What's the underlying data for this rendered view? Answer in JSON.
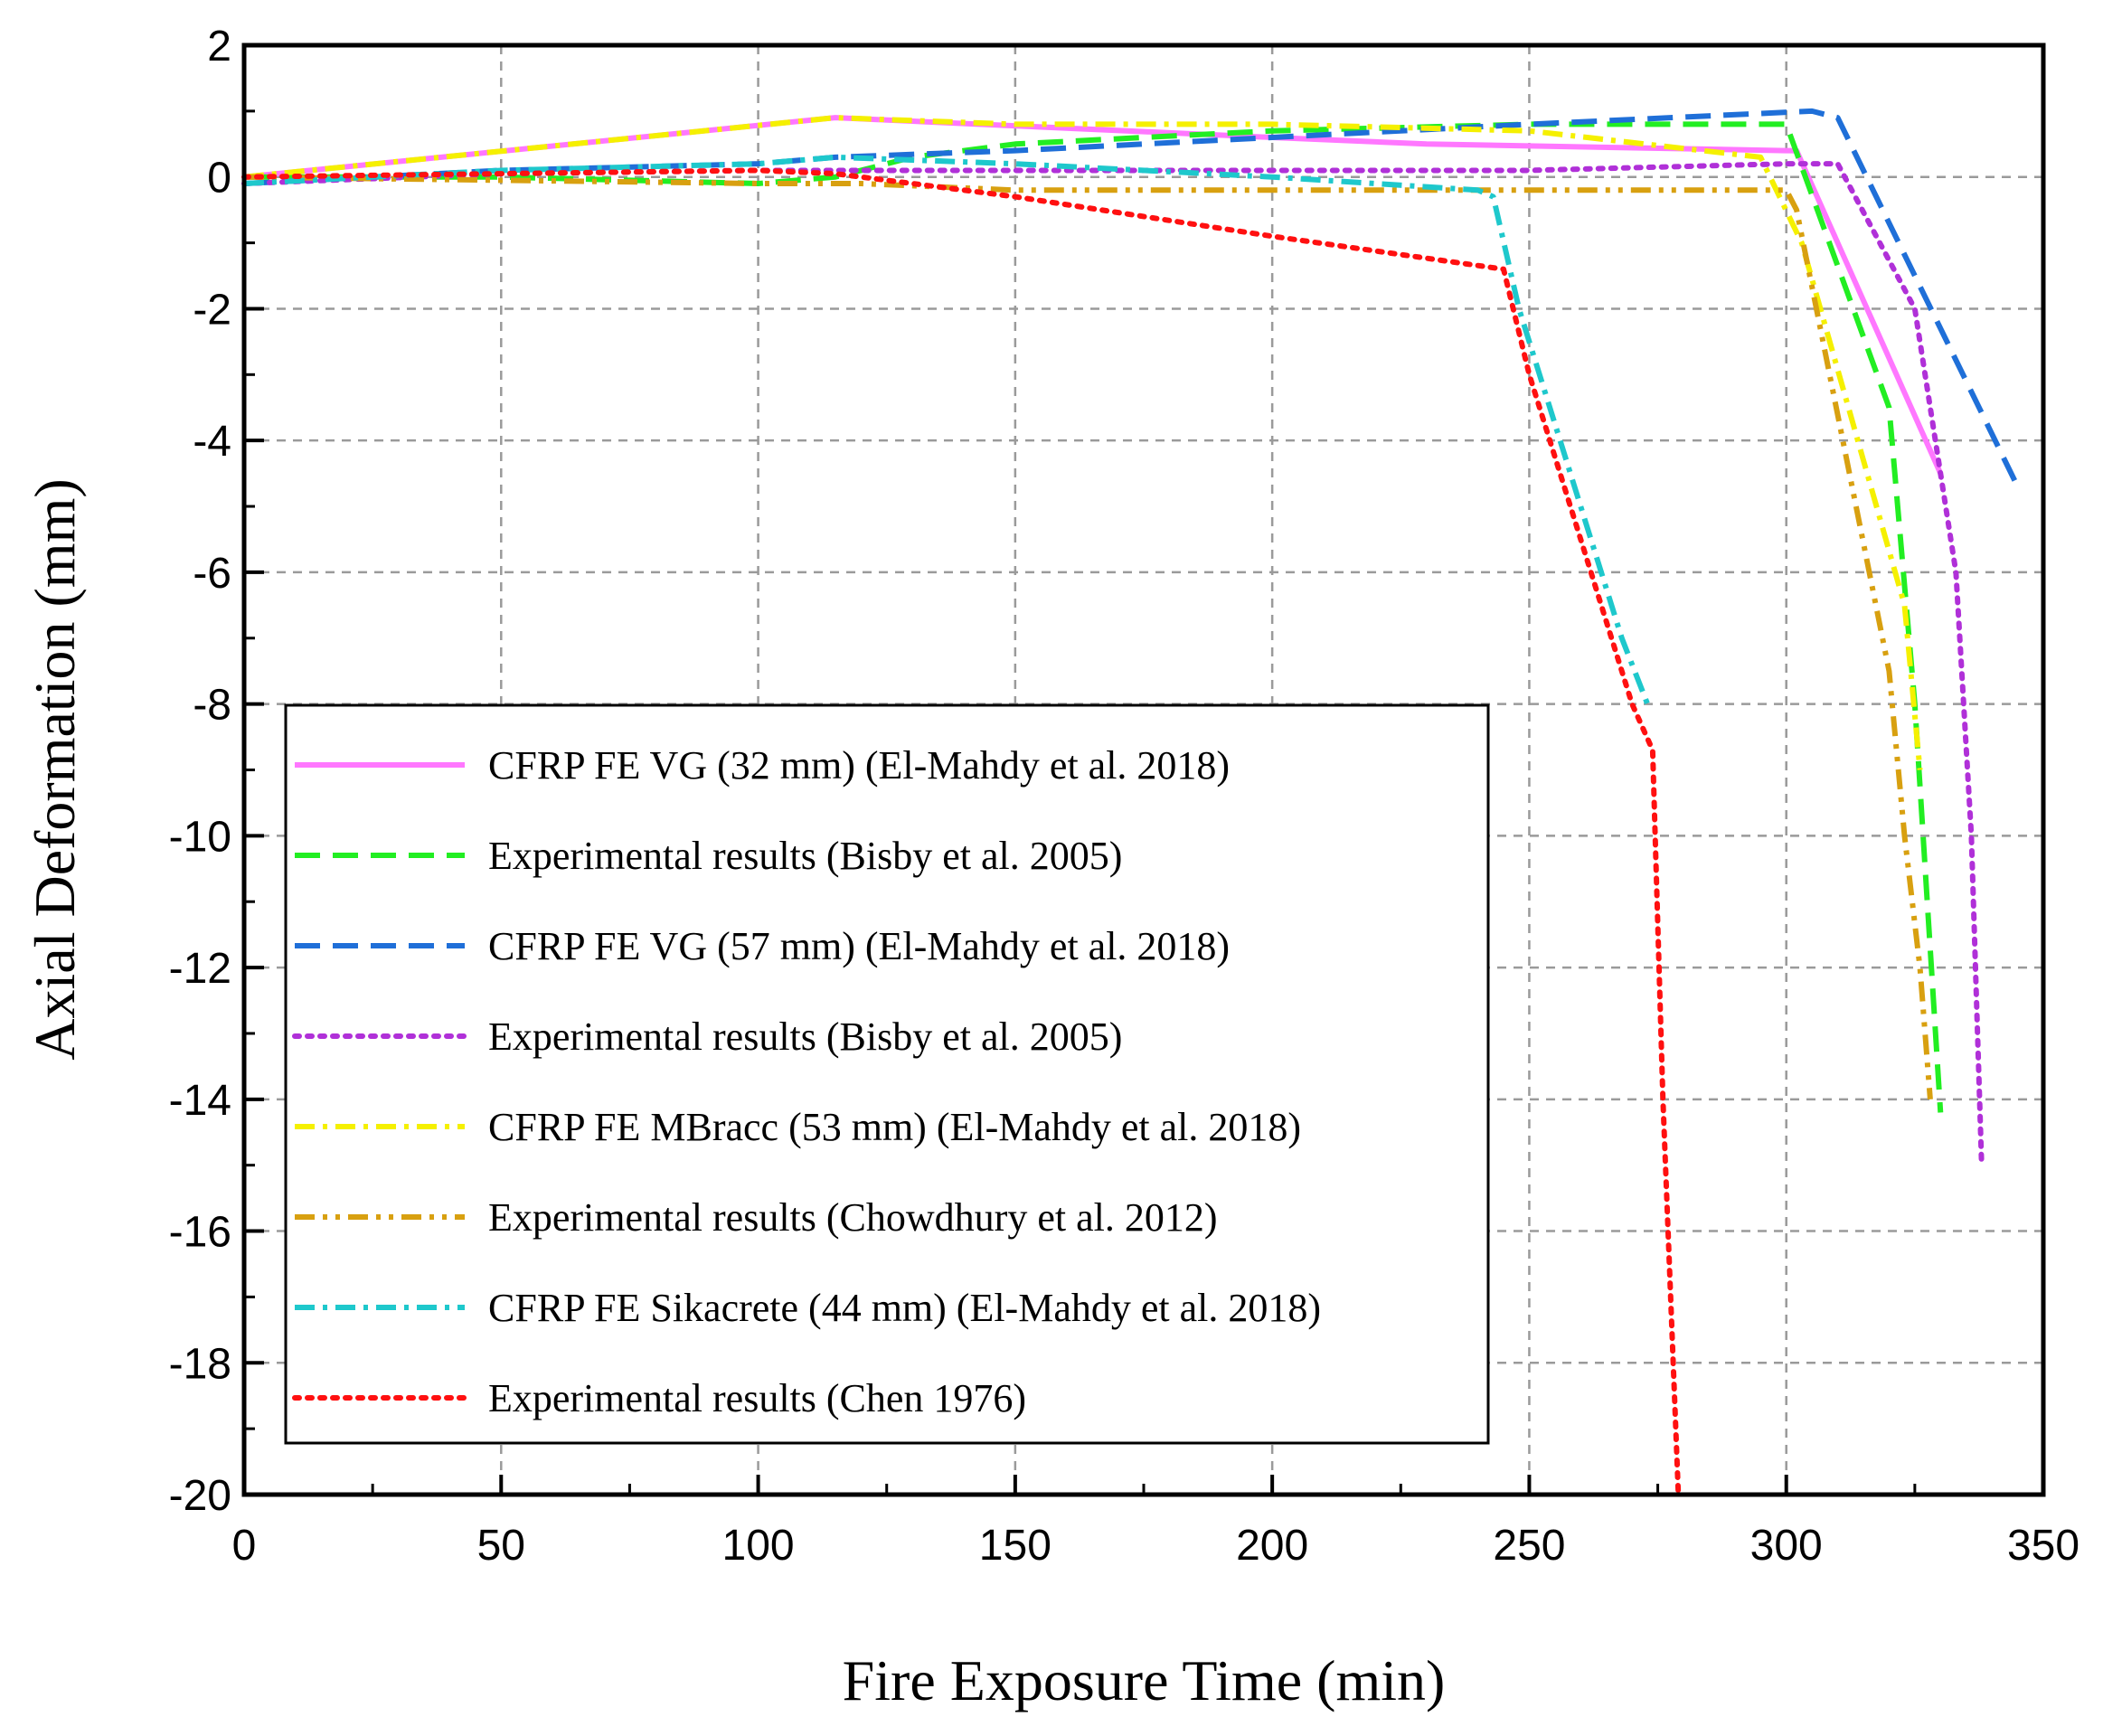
{
  "chart_data": {
    "type": "line",
    "title": "",
    "xlabel": "Fire Exposure Time (min)",
    "ylabel": "Axial Deformation (mm)",
    "xlim": [
      0,
      350
    ],
    "ylim": [
      -20,
      2
    ],
    "xticks": [
      0,
      50,
      100,
      150,
      200,
      250,
      300,
      350
    ],
    "yticks": [
      2,
      0,
      -2,
      -4,
      -6,
      -8,
      -10,
      -12,
      -14,
      -16,
      -18,
      -20
    ],
    "grid": true,
    "legend_position": "lower-left",
    "series": [
      {
        "name": "CFRP FE VG (32 mm) (El-Mahdy et al. 2018)",
        "color": "#ff77ff",
        "style": "solid",
        "x": [
          0,
          115,
          200,
          230,
          300,
          302,
          330
        ],
        "y": [
          0,
          0.9,
          0.6,
          0.5,
          0.4,
          0.4,
          -4.5
        ]
      },
      {
        "name": "Experimental results (Bisby et al. 2005)",
        "color": "#22ee22",
        "style": "dash",
        "x": [
          0,
          50,
          100,
          115,
          130,
          150,
          200,
          250,
          298,
          300,
          320,
          325,
          330
        ],
        "y": [
          0,
          0,
          -0.1,
          0,
          0.3,
          0.5,
          0.7,
          0.8,
          0.8,
          0.8,
          -3.5,
          -8,
          -14.2
        ]
      },
      {
        "name": "CFRP FE VG (57 mm) (El-Mahdy et al. 2018)",
        "color": "#1f6fd8",
        "style": "dash",
        "x": [
          0,
          50,
          100,
          115,
          150,
          200,
          250,
          305,
          310,
          345
        ],
        "y": [
          -0.1,
          0.1,
          0.2,
          0.3,
          0.4,
          0.6,
          0.8,
          1.0,
          0.9,
          -4.7
        ]
      },
      {
        "name": "Experimental results (Bisby et al. 2005)",
        "color": "#b030d8",
        "style": "dot",
        "x": [
          0,
          50,
          100,
          110,
          150,
          200,
          250,
          300,
          310,
          325,
          333,
          336,
          338
        ],
        "y": [
          -0.1,
          0.05,
          0.1,
          0.1,
          0.1,
          0.1,
          0.1,
          0.2,
          0.2,
          -2,
          -6,
          -10,
          -15
        ]
      },
      {
        "name": "CFRP FE MBracc (53 mm) (El-Mahdy et al. 2018)",
        "color": "#f5f000",
        "style": "dashdot",
        "x": [
          0,
          115,
          150,
          200,
          250,
          295,
          303,
          323,
          326
        ],
        "y": [
          0,
          0.9,
          0.8,
          0.8,
          0.7,
          0.3,
          -1,
          -6.5,
          -9
        ]
      },
      {
        "name": "Experimental results (Chowdhury et al. 2012)",
        "color": "#d8a010",
        "style": "dashdotdot",
        "x": [
          0,
          100,
          120,
          150,
          200,
          250,
          300,
          302,
          320,
          323,
          326,
          328
        ],
        "y": [
          0,
          -0.1,
          -0.1,
          -0.2,
          -0.2,
          -0.2,
          -0.2,
          -0.5,
          -7.5,
          -10,
          -12,
          -14
        ]
      },
      {
        "name": "CFRP FE Sikacrete (44 mm) (El-Mahdy et al. 2018)",
        "color": "#1ec8cc",
        "style": "dashdot",
        "x": [
          0,
          50,
          100,
          115,
          150,
          200,
          240,
          243,
          248,
          260,
          268,
          273
        ],
        "y": [
          -0.1,
          0.1,
          0.2,
          0.3,
          0.2,
          0,
          -0.2,
          -0.3,
          -2,
          -5,
          -7,
          -8
        ]
      },
      {
        "name": "Experimental results (Chen 1976)",
        "color": "#ff1010",
        "style": "dot",
        "x": [
          0,
          50,
          100,
          115,
          150,
          200,
          245,
          250,
          270,
          274,
          276,
          279
        ],
        "y": [
          0,
          0.05,
          0.1,
          0.05,
          -0.3,
          -0.9,
          -1.4,
          -3,
          -8,
          -8.7,
          -14,
          -20
        ]
      }
    ]
  }
}
